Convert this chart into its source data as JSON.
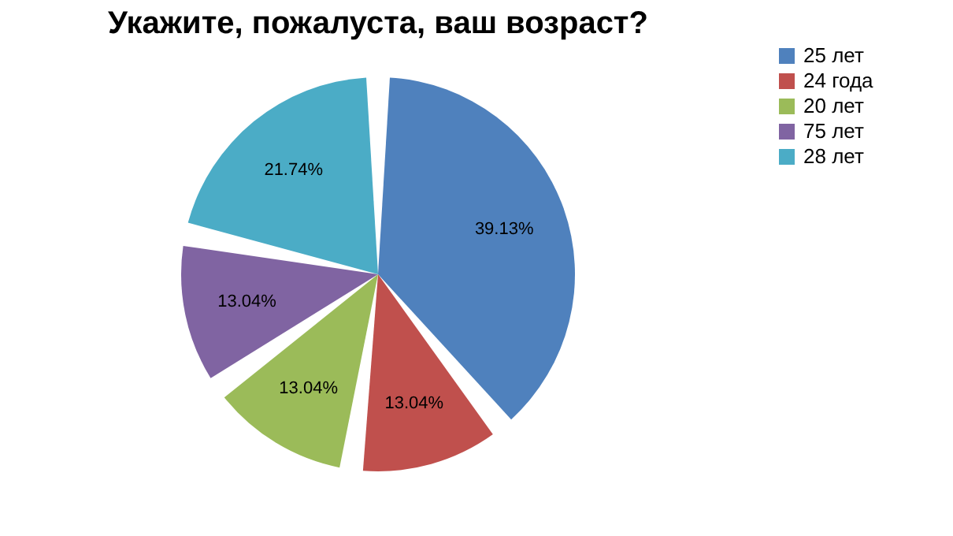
{
  "chart_data": {
    "type": "pie",
    "title": "Укажите, пожалуста, ваш возраст?",
    "categories": [
      "25 лет",
      "24 года",
      "20 лет",
      "75 лет",
      "28 лет"
    ],
    "values": [
      39.13,
      13.04,
      13.04,
      13.04,
      21.74
    ],
    "colors": [
      "#4f81bd",
      "#c0504d",
      "#9bbb59",
      "#8064a2",
      "#4bacc6"
    ],
    "value_labels": [
      "39.13%",
      "13.04%",
      "13.04%",
      "13.04%",
      "21.74%"
    ],
    "legend": "right"
  }
}
